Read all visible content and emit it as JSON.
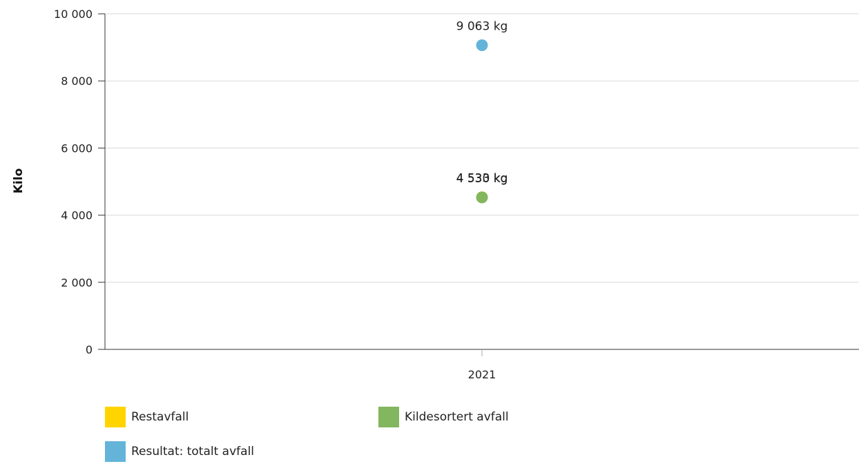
{
  "chart_data": {
    "type": "scatter",
    "ylabel": "Kilo",
    "ylim": [
      0,
      10000
    ],
    "yticks": [
      0,
      2000,
      4000,
      6000,
      8000,
      10000
    ],
    "ytick_labels": [
      "0",
      "2 000",
      "4 000",
      "6 000",
      "8 000",
      "10 000"
    ],
    "categories": [
      "2021"
    ],
    "grid": true,
    "legend_position": "bottom",
    "series": [
      {
        "name": "Restavfall",
        "color": "#FFD400",
        "values": [
          4533
        ],
        "label": "",
        "show_label": false
      },
      {
        "name": "Kildesortert avfall",
        "color": "#82B65F",
        "values": [
          4530
        ],
        "label": "4 530 kg",
        "show_label": true
      },
      {
        "name": "Resultat: totalt avfall",
        "color": "#64B4DA",
        "values": [
          9063
        ],
        "label": "9 063 kg",
        "show_label": true
      }
    ],
    "overlap_label": "4 533 kg"
  }
}
